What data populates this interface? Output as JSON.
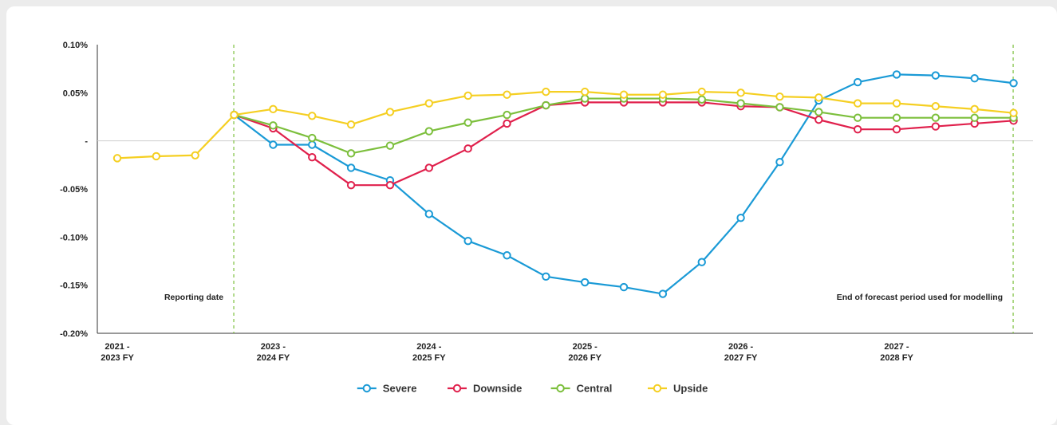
{
  "chart_data": {
    "type": "line",
    "y_ticks": [
      {
        "value": 0.1,
        "label": "0.10%"
      },
      {
        "value": 0.05,
        "label": "0.05%"
      },
      {
        "value": 0.0,
        "label": "-"
      },
      {
        "value": -0.05,
        "label": "-0.05%"
      },
      {
        "value": -0.1,
        "label": "-0.10%"
      },
      {
        "value": -0.15,
        "label": "-0.15%"
      },
      {
        "value": -0.2,
        "label": "-0.20%"
      }
    ],
    "ylim": [
      -0.2,
      0.1
    ],
    "x_count": 24,
    "x_ticks": [
      {
        "index": 0,
        "line1": "2021 -",
        "line2": "2023 FY"
      },
      {
        "index": 4,
        "line1": "2023 -",
        "line2": "2024 FY"
      },
      {
        "index": 8,
        "line1": "2024 -",
        "line2": "2025 FY"
      },
      {
        "index": 12,
        "line1": "2025 -",
        "line2": "2026 FY"
      },
      {
        "index": 16,
        "line1": "2026 -",
        "line2": "2027 FY"
      },
      {
        "index": 20,
        "line1": "2027 -",
        "line2": "2028 FY"
      }
    ],
    "annotations": [
      {
        "x_index": 3,
        "text": "Reporting date",
        "anchor": "end"
      },
      {
        "x_index": 23,
        "text": "End of forecast period used for modelling",
        "anchor": "end"
      }
    ],
    "series": [
      {
        "name": "Severe",
        "color": "#1a9ad6",
        "start_index": 3,
        "values": [
          0.027,
          -0.004,
          -0.004,
          -0.028,
          -0.041,
          -0.076,
          -0.104,
          -0.119,
          -0.141,
          -0.147,
          -0.152,
          -0.159,
          -0.126,
          -0.08,
          -0.022,
          0.042,
          0.061,
          0.069,
          0.068,
          0.065,
          0.06
        ]
      },
      {
        "name": "Downside",
        "color": "#e0204c",
        "start_index": 3,
        "values": [
          0.027,
          0.013,
          -0.017,
          -0.046,
          -0.046,
          -0.028,
          -0.008,
          0.018,
          0.037,
          0.04,
          0.04,
          0.04,
          0.04,
          0.036,
          0.035,
          0.022,
          0.012,
          0.012,
          0.015,
          0.018,
          0.021
        ]
      },
      {
        "name": "Central",
        "color": "#7cbf3c",
        "start_index": 3,
        "values": [
          0.027,
          0.016,
          0.003,
          -0.013,
          -0.005,
          0.01,
          0.019,
          0.027,
          0.037,
          0.044,
          0.044,
          0.044,
          0.043,
          0.039,
          0.035,
          0.03,
          0.024,
          0.024,
          0.024,
          0.024,
          0.024
        ]
      },
      {
        "name": "Upside",
        "color": "#f5cf22",
        "start_index": 0,
        "values": [
          -0.018,
          -0.016,
          -0.015,
          0.027,
          0.033,
          0.026,
          0.017,
          0.03,
          0.039,
          0.047,
          0.048,
          0.051,
          0.051,
          0.048,
          0.048,
          0.051,
          0.05,
          0.046,
          0.045,
          0.039,
          0.039,
          0.036,
          0.033,
          0.029
        ]
      }
    ],
    "legend_position": "bottom-center",
    "grid": false,
    "reference_line_color": "#7cbf3c"
  }
}
